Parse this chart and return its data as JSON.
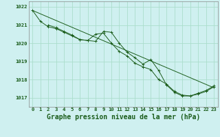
{
  "title": "Graphe pression niveau de la mer (hPa)",
  "bg_color": "#cff0f0",
  "grid_color": "#aaddcc",
  "line_color": "#1a5c1a",
  "marker_color": "#1a5c1a",
  "ylim": [
    1016.5,
    1022.3
  ],
  "xlim": [
    -0.5,
    23.5
  ],
  "yticks": [
    1017,
    1018,
    1019,
    1020,
    1021,
    1022
  ],
  "xticks": [
    0,
    1,
    2,
    3,
    4,
    5,
    6,
    7,
    8,
    9,
    10,
    11,
    12,
    13,
    14,
    15,
    16,
    17,
    18,
    19,
    20,
    21,
    22,
    23
  ],
  "trend_x": [
    0,
    23
  ],
  "trend_y": [
    1021.8,
    1017.55
  ],
  "series1_x": [
    0,
    1,
    2,
    3,
    4,
    5,
    6,
    7,
    8,
    9,
    10,
    11,
    12,
    13,
    14,
    15,
    16,
    17,
    18,
    19,
    20,
    21,
    22,
    23
  ],
  "series1_y": [
    1021.8,
    1021.2,
    1020.9,
    1020.8,
    1020.6,
    1020.4,
    1020.2,
    1020.15,
    1020.1,
    1020.65,
    1020.6,
    1020.0,
    1019.5,
    1019.2,
    1018.85,
    1019.1,
    1018.5,
    1017.7,
    1017.3,
    1017.1,
    1017.1,
    1017.2,
    1017.35,
    1017.6
  ],
  "series2_x": [
    2,
    3,
    4,
    5,
    6,
    7,
    8,
    9,
    10,
    11,
    12,
    13,
    14,
    15,
    16,
    17,
    18,
    19,
    20,
    21,
    22,
    23
  ],
  "series2_y": [
    1021.0,
    1020.85,
    1020.65,
    1020.45,
    1020.2,
    1020.15,
    1020.5,
    1020.55,
    1020.0,
    1019.55,
    1019.3,
    1018.9,
    1018.7,
    1018.55,
    1018.0,
    1017.75,
    1017.35,
    1017.15,
    1017.1,
    1017.25,
    1017.4,
    1017.65
  ],
  "ylabel_fontsize": 5.2,
  "xlabel_fontsize": 5.2,
  "title_fontsize": 7.0,
  "linewidth": 0.7,
  "markersize": 3.0
}
